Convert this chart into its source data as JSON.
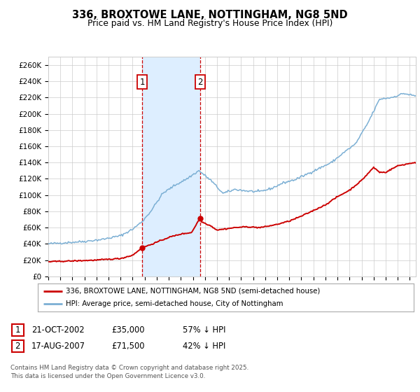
{
  "title": "336, BROXTOWE LANE, NOTTINGHAM, NG8 5ND",
  "subtitle": "Price paid vs. HM Land Registry's House Price Index (HPI)",
  "legend_line1": "336, BROXTOWE LANE, NOTTINGHAM, NG8 5ND (semi-detached house)",
  "legend_line2": "HPI: Average price, semi-detached house, City of Nottingham",
  "footer": "Contains HM Land Registry data © Crown copyright and database right 2025.\nThis data is licensed under the Open Government Licence v3.0.",
  "purchase1_date": "21-OCT-2002",
  "purchase1_price": 35000,
  "purchase1_note": "57% ↓ HPI",
  "purchase2_date": "17-AUG-2007",
  "purchase2_price": 71500,
  "purchase2_note": "42% ↓ HPI",
  "red_color": "#cc0000",
  "blue_color": "#7BAFD4",
  "shading_color": "#ddeeff",
  "background_color": "#ffffff",
  "grid_color": "#cccccc",
  "ylim": [
    0,
    270000
  ],
  "yticks": [
    0,
    20000,
    40000,
    60000,
    80000,
    100000,
    120000,
    140000,
    160000,
    180000,
    200000,
    220000,
    240000,
    260000
  ],
  "hpi_keypoints_years": [
    1995.0,
    1996.5,
    1998.0,
    1999.5,
    2001.0,
    2002.0,
    2002.83,
    2003.5,
    2004.5,
    2005.5,
    2006.5,
    2007.5,
    2008.5,
    2009.5,
    2010.5,
    2011.5,
    2012.5,
    2013.5,
    2014.5,
    2015.5,
    2016.5,
    2017.5,
    2018.5,
    2019.5,
    2020.5,
    2021.5,
    2022.5,
    2023.5,
    2024.5,
    2025.4
  ],
  "hpi_keypoints_vals": [
    40000,
    41500,
    43000,
    45500,
    50000,
    58000,
    68000,
    80000,
    102000,
    112000,
    120000,
    130000,
    118000,
    102000,
    107000,
    105000,
    104000,
    108000,
    115000,
    119000,
    126000,
    133000,
    140000,
    152000,
    163000,
    188000,
    218000,
    220000,
    225000,
    222000
  ],
  "prop_keypoints_years": [
    1995.0,
    1996.0,
    1997.5,
    1999.0,
    2001.0,
    2002.0,
    2002.75,
    2003.3,
    2004.0,
    2005.0,
    2006.0,
    2006.9,
    2007.58,
    2007.75,
    2008.5,
    2009.0,
    2009.5,
    2010.5,
    2011.5,
    2012.5,
    2013.0,
    2014.0,
    2015.0,
    2016.0,
    2017.0,
    2018.0,
    2019.0,
    2020.0,
    2021.0,
    2022.0,
    2022.5,
    2023.0,
    2024.0,
    2025.4
  ],
  "prop_keypoints_vals": [
    18000,
    18500,
    19200,
    20000,
    22000,
    26000,
    35000,
    38000,
    42000,
    48000,
    52000,
    54000,
    71500,
    67000,
    62000,
    57000,
    58000,
    60000,
    61000,
    60000,
    61000,
    64000,
    68000,
    74000,
    81000,
    88000,
    98000,
    106000,
    118000,
    134000,
    128000,
    128000,
    136000,
    140000
  ],
  "p1_year": 2002.792,
  "p2_year": 2007.583,
  "p1_val": 35000,
  "p2_val": 71500
}
